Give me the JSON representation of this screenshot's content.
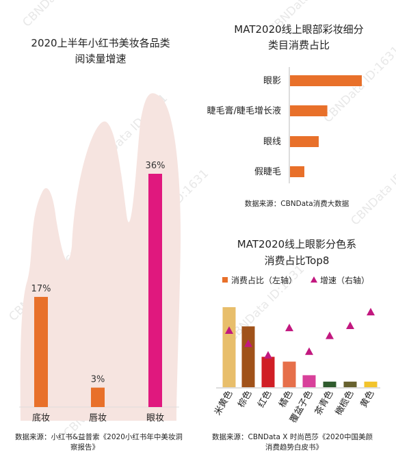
{
  "watermark": "CBNData ID:1631",
  "colors": {
    "orange": "#e8702a",
    "magenta": "#e0187e",
    "mountain": "#f5e3df",
    "watermark": "#cccccc"
  },
  "chart_data": [
    {
      "type": "bar",
      "title_lines": [
        "2020上半年小红书美妆各品类",
        "阅读量增速"
      ],
      "categories": [
        "底妆",
        "唇妆",
        "眼妆"
      ],
      "values": [
        17,
        3,
        36
      ],
      "value_labels": [
        "17%",
        "3%",
        "36%"
      ],
      "bar_colors": [
        "#e8702a",
        "#e8702a",
        "#e0187e"
      ],
      "ylim": [
        0,
        40
      ],
      "source_lines": [
        "数据来源：小红书&益普索《2020小红书年中美妆洞",
        "察报告》"
      ]
    },
    {
      "type": "bar",
      "orientation": "horizontal",
      "title_lines": [
        "MAT2020线上眼部彩妆细分",
        "类目消费占比"
      ],
      "categories": [
        "眼影",
        "睫毛膏/睫毛增长液",
        "眼线",
        "假睫毛"
      ],
      "values": [
        100,
        52,
        40,
        20
      ],
      "bar_color": "#e8702a",
      "source": "数据来源：CBNData消费大数据"
    },
    {
      "type": "bar",
      "title_lines": [
        "MAT2020线上眼影分色系",
        "消费占比Top8"
      ],
      "legend": [
        "消费占比（左轴）",
        "增速（右轴）"
      ],
      "categories": [
        "米黄色",
        "棕色",
        "红色",
        "橘色",
        "覆盆子色",
        "茶青色",
        "橄榄色",
        "黄色"
      ],
      "series": [
        {
          "name": "消费占比（左轴）",
          "type": "bar",
          "axis": "left",
          "values": [
            100,
            76,
            38,
            32,
            15,
            7,
            7,
            7
          ]
        },
        {
          "name": "增速（右轴）",
          "type": "scatter",
          "axis": "right",
          "marker": "triangle",
          "values": [
            65,
            40,
            18,
            70,
            25,
            55,
            74,
            100
          ]
        }
      ],
      "bar_colors": [
        "#e8be6b",
        "#a0521a",
        "#d01f26",
        "#e66f4a",
        "#d8409a",
        "#2f5b2d",
        "#67612e",
        "#f2c42c"
      ],
      "marker_color": "#c2187f",
      "source_lines": [
        "数据来源：CBNData X 时尚芭莎《2020中国美颜",
        "消费趋势白皮书》"
      ]
    }
  ]
}
